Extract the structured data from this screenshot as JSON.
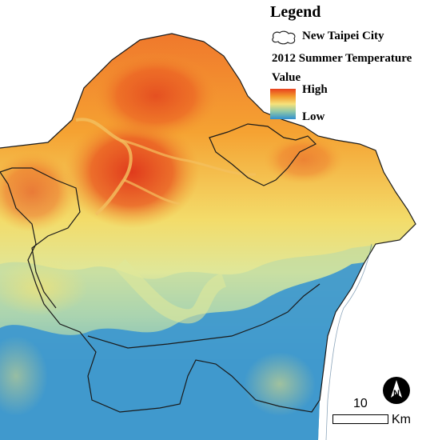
{
  "legend": {
    "title": "Legend",
    "boundary_label": "New Taipei City",
    "subtitle": "2012 Summer Temperature",
    "value_label": "Value",
    "high_label": "High",
    "low_label": "Low"
  },
  "scale": {
    "distance": "10",
    "unit": "Km"
  },
  "icons": {
    "north_arrow": "north-arrow-icon",
    "boundary_symbol": "boundary-outline-icon"
  },
  "colors": {
    "high": "#e8401e",
    "mid_high": "#f39a2c",
    "mid": "#f6e27a",
    "mid_low": "#8fc7a8",
    "low": "#2e8fd0",
    "boundary": "#1a1a1a"
  }
}
